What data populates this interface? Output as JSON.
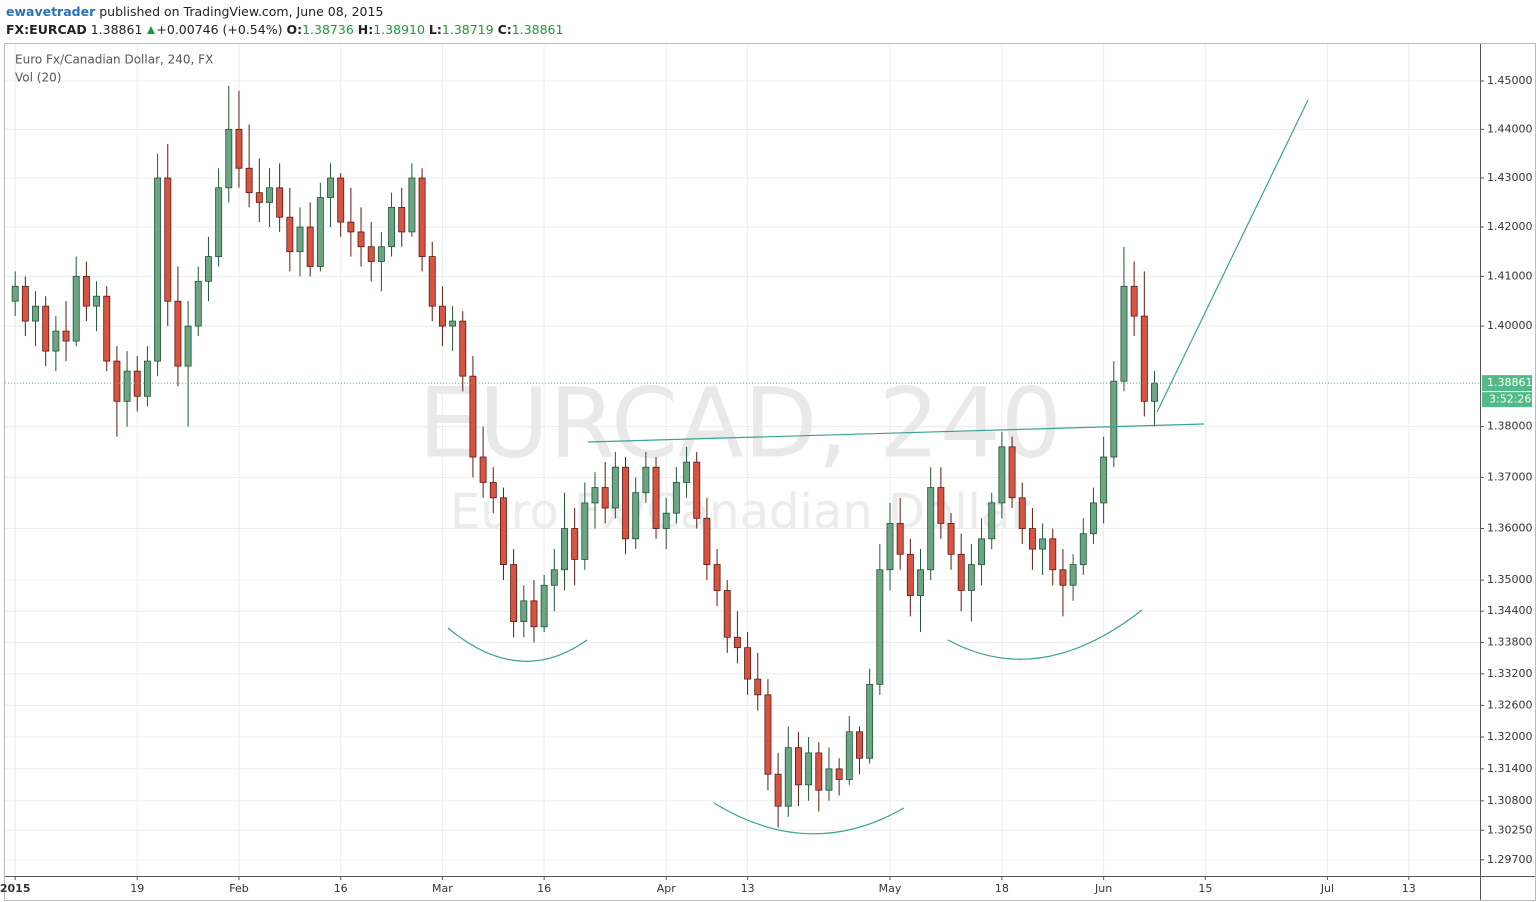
{
  "header": {
    "author": "ewavetrader",
    "published": "published on TradingView.com, June 08, 2015",
    "symbol": "FX:EURCAD",
    "price": "1.38861",
    "change": "+0.00746 (+0.54%)",
    "open_label": "O:",
    "open": "1.38736",
    "high_label": "H:",
    "high": "1.38910",
    "low_label": "L:",
    "low": "1.38719",
    "close_label": "C:",
    "close": "1.38861"
  },
  "chart_data": {
    "type": "candlestick",
    "title": "Euro Fx/Canadian Dollar, 240, FX",
    "subtitle": "Vol (20)",
    "watermark": [
      "EURCAD, 240",
      "Euro Fx/Canadian Dollar"
    ],
    "up_color": "#6ba583",
    "down_color": "#d75442",
    "log_scale": true,
    "grid": true,
    "last_price": 1.38861,
    "countdown": "3:52:26",
    "last_price_color": "#53b987",
    "xlim": [
      "2014-12-31",
      "2015-07-22"
    ],
    "xticks": [
      {
        "value": "2015-01-01",
        "label": "2015"
      },
      {
        "value": "2015-01-19",
        "label": "19"
      },
      {
        "value": "2015-02-02",
        "label": "Feb"
      },
      {
        "value": "2015-02-16",
        "label": "16"
      },
      {
        "value": "2015-03-02",
        "label": "Mar"
      },
      {
        "value": "2015-03-16",
        "label": "16"
      },
      {
        "value": "2015-04-01",
        "label": "Apr"
      },
      {
        "value": "2015-04-13",
        "label": "13"
      },
      {
        "value": "2015-05-01",
        "label": "May"
      },
      {
        "value": "2015-05-18",
        "label": "18"
      },
      {
        "value": "2015-06-01",
        "label": "Jun"
      },
      {
        "value": "2015-06-15",
        "label": "15"
      },
      {
        "value": "2015-07-01",
        "label": "Jul"
      },
      {
        "value": "2015-07-13",
        "label": "13"
      }
    ],
    "ylim": [
      1.294,
      1.4577
    ],
    "yticks": [
      {
        "value": 1.45,
        "label": "1.45000"
      },
      {
        "value": 1.44,
        "label": "1.44000"
      },
      {
        "value": 1.43,
        "label": "1.43000"
      },
      {
        "value": 1.42,
        "label": "1.42000"
      },
      {
        "value": 1.41,
        "label": "1.41000"
      },
      {
        "value": 1.4,
        "label": "1.40000"
      },
      {
        "value": 1.38,
        "label": "1.38000"
      },
      {
        "value": 1.37,
        "label": "1.37000"
      },
      {
        "value": 1.36,
        "label": "1.36000"
      },
      {
        "value": 1.35,
        "label": "1.35000"
      },
      {
        "value": 1.344,
        "label": "1.34400"
      },
      {
        "value": 1.338,
        "label": "1.33800"
      },
      {
        "value": 1.332,
        "label": "1.33200"
      },
      {
        "value": 1.326,
        "label": "1.32600"
      },
      {
        "value": 1.32,
        "label": "1.32000"
      },
      {
        "value": 1.314,
        "label": "1.31400"
      },
      {
        "value": 1.308,
        "label": "1.30800"
      },
      {
        "value": 1.3025,
        "label": "1.30250"
      },
      {
        "value": 1.297,
        "label": "1.29700"
      }
    ],
    "x": [
      "2015-01-01",
      "2015-01-02",
      "2015-01-05",
      "2015-01-06",
      "2015-01-07",
      "2015-01-08",
      "2015-01-09",
      "2015-01-12",
      "2015-01-13",
      "2015-01-14",
      "2015-01-15",
      "2015-01-16",
      "2015-01-19",
      "2015-01-20",
      "2015-01-21",
      "2015-01-22",
      "2015-01-23",
      "2015-01-26",
      "2015-01-27",
      "2015-01-28",
      "2015-01-29",
      "2015-01-30",
      "2015-02-02",
      "2015-02-03",
      "2015-02-04",
      "2015-02-05",
      "2015-02-06",
      "2015-02-09",
      "2015-02-10",
      "2015-02-11",
      "2015-02-12",
      "2015-02-13",
      "2015-02-16",
      "2015-02-17",
      "2015-02-18",
      "2015-02-19",
      "2015-02-20",
      "2015-02-23",
      "2015-02-24",
      "2015-02-25",
      "2015-02-26",
      "2015-02-27",
      "2015-03-02",
      "2015-03-03",
      "2015-03-04",
      "2015-03-05",
      "2015-03-06",
      "2015-03-09",
      "2015-03-10",
      "2015-03-11",
      "2015-03-12",
      "2015-03-13",
      "2015-03-16",
      "2015-03-17",
      "2015-03-18",
      "2015-03-19",
      "2015-03-20",
      "2015-03-23",
      "2015-03-24",
      "2015-03-25",
      "2015-03-26",
      "2015-03-27",
      "2015-03-30",
      "2015-03-31",
      "2015-04-01",
      "2015-04-02",
      "2015-04-03",
      "2015-04-06",
      "2015-04-07",
      "2015-04-08",
      "2015-04-09",
      "2015-04-10",
      "2015-04-13",
      "2015-04-14",
      "2015-04-15",
      "2015-04-16",
      "2015-04-17",
      "2015-04-20",
      "2015-04-21",
      "2015-04-22",
      "2015-04-23",
      "2015-04-24",
      "2015-04-27",
      "2015-04-28",
      "2015-04-29",
      "2015-04-30",
      "2015-05-01",
      "2015-05-04",
      "2015-05-05",
      "2015-05-06",
      "2015-05-07",
      "2015-05-08",
      "2015-05-11",
      "2015-05-12",
      "2015-05-13",
      "2015-05-14",
      "2015-05-15",
      "2015-05-18",
      "2015-05-19",
      "2015-05-20",
      "2015-05-21",
      "2015-05-22",
      "2015-05-25",
      "2015-05-26",
      "2015-05-27",
      "2015-05-28",
      "2015-05-29",
      "2015-06-01",
      "2015-06-02",
      "2015-06-03",
      "2015-06-04",
      "2015-06-05",
      "2015-06-08"
    ],
    "open": [
      1.405,
      1.408,
      1.401,
      1.404,
      1.395,
      1.399,
      1.397,
      1.41,
      1.404,
      1.406,
      1.393,
      1.385,
      1.391,
      1.386,
      1.393,
      1.43,
      1.405,
      1.392,
      1.4,
      1.409,
      1.414,
      1.428,
      1.44,
      1.432,
      1.427,
      1.425,
      1.428,
      1.422,
      1.415,
      1.42,
      1.412,
      1.426,
      1.43,
      1.421,
      1.419,
      1.416,
      1.413,
      1.416,
      1.424,
      1.419,
      1.43,
      1.414,
      1.404,
      1.4,
      1.401,
      1.39,
      1.374,
      1.369,
      1.366,
      1.353,
      1.342,
      1.346,
      1.341,
      1.349,
      1.352,
      1.36,
      1.354,
      1.365,
      1.368,
      1.364,
      1.372,
      1.358,
      1.367,
      1.372,
      1.36,
      1.363,
      1.369,
      1.373,
      1.362,
      1.353,
      1.348,
      1.339,
      1.337,
      1.331,
      1.328,
      1.313,
      1.307,
      1.318,
      1.311,
      1.317,
      1.31,
      1.314,
      1.312,
      1.321,
      1.316,
      1.33,
      1.352,
      1.361,
      1.355,
      1.347,
      1.352,
      1.368,
      1.361,
      1.355,
      1.348,
      1.353,
      1.358,
      1.365,
      1.376,
      1.366,
      1.36,
      1.356,
      1.358,
      1.352,
      1.349,
      1.353,
      1.359,
      1.365,
      1.374,
      1.389,
      1.408,
      1.402,
      1.385
    ],
    "high": [
      1.411,
      1.41,
      1.407,
      1.406,
      1.402,
      1.405,
      1.414,
      1.413,
      1.409,
      1.408,
      1.396,
      1.395,
      1.394,
      1.396,
      1.435,
      1.437,
      1.412,
      1.405,
      1.412,
      1.418,
      1.432,
      1.449,
      1.448,
      1.441,
      1.434,
      1.432,
      1.433,
      1.428,
      1.424,
      1.425,
      1.429,
      1.433,
      1.431,
      1.428,
      1.424,
      1.421,
      1.419,
      1.427,
      1.428,
      1.433,
      1.432,
      1.417,
      1.408,
      1.404,
      1.403,
      1.394,
      1.38,
      1.372,
      1.368,
      1.356,
      1.349,
      1.35,
      1.351,
      1.356,
      1.367,
      1.364,
      1.369,
      1.371,
      1.373,
      1.375,
      1.374,
      1.37,
      1.375,
      1.374,
      1.366,
      1.372,
      1.376,
      1.375,
      1.366,
      1.356,
      1.35,
      1.344,
      1.34,
      1.336,
      1.331,
      1.317,
      1.322,
      1.321,
      1.32,
      1.319,
      1.318,
      1.316,
      1.324,
      1.322,
      1.333,
      1.357,
      1.365,
      1.366,
      1.358,
      1.356,
      1.372,
      1.372,
      1.363,
      1.359,
      1.357,
      1.362,
      1.367,
      1.379,
      1.378,
      1.369,
      1.364,
      1.361,
      1.36,
      1.356,
      1.355,
      1.362,
      1.368,
      1.378,
      1.393,
      1.416,
      1.413,
      1.411,
      1.391
    ],
    "low": [
      1.402,
      1.398,
      1.396,
      1.392,
      1.391,
      1.393,
      1.396,
      1.401,
      1.399,
      1.391,
      1.378,
      1.38,
      1.383,
      1.384,
      1.39,
      1.4,
      1.388,
      1.38,
      1.398,
      1.405,
      1.412,
      1.425,
      1.428,
      1.424,
      1.421,
      1.42,
      1.419,
      1.411,
      1.41,
      1.41,
      1.411,
      1.42,
      1.418,
      1.414,
      1.412,
      1.409,
      1.407,
      1.414,
      1.416,
      1.418,
      1.411,
      1.401,
      1.396,
      1.395,
      1.387,
      1.37,
      1.366,
      1.363,
      1.35,
      1.339,
      1.339,
      1.338,
      1.34,
      1.344,
      1.348,
      1.349,
      1.352,
      1.36,
      1.361,
      1.362,
      1.355,
      1.356,
      1.365,
      1.358,
      1.356,
      1.361,
      1.366,
      1.36,
      1.35,
      1.345,
      1.336,
      1.334,
      1.328,
      1.325,
      1.31,
      1.303,
      1.305,
      1.307,
      1.308,
      1.306,
      1.308,
      1.309,
      1.311,
      1.313,
      1.315,
      1.328,
      1.348,
      1.352,
      1.343,
      1.34,
      1.35,
      1.358,
      1.352,
      1.344,
      1.342,
      1.349,
      1.356,
      1.362,
      1.364,
      1.357,
      1.352,
      1.351,
      1.349,
      1.343,
      1.346,
      1.351,
      1.357,
      1.361,
      1.372,
      1.387,
      1.398,
      1.382,
      1.38
    ],
    "close": [
      1.408,
      1.401,
      1.404,
      1.395,
      1.399,
      1.397,
      1.41,
      1.404,
      1.406,
      1.393,
      1.385,
      1.391,
      1.386,
      1.393,
      1.43,
      1.405,
      1.392,
      1.4,
      1.409,
      1.414,
      1.428,
      1.44,
      1.432,
      1.427,
      1.425,
      1.428,
      1.422,
      1.415,
      1.42,
      1.412,
      1.426,
      1.43,
      1.421,
      1.419,
      1.416,
      1.413,
      1.416,
      1.424,
      1.419,
      1.43,
      1.414,
      1.404,
      1.4,
      1.401,
      1.39,
      1.374,
      1.369,
      1.366,
      1.353,
      1.342,
      1.346,
      1.341,
      1.349,
      1.352,
      1.36,
      1.354,
      1.365,
      1.368,
      1.364,
      1.372,
      1.358,
      1.367,
      1.372,
      1.36,
      1.363,
      1.369,
      1.373,
      1.362,
      1.353,
      1.348,
      1.339,
      1.337,
      1.331,
      1.328,
      1.313,
      1.307,
      1.318,
      1.311,
      1.317,
      1.31,
      1.314,
      1.312,
      1.321,
      1.316,
      1.33,
      1.352,
      1.361,
      1.355,
      1.347,
      1.352,
      1.368,
      1.361,
      1.355,
      1.348,
      1.353,
      1.358,
      1.365,
      1.376,
      1.366,
      1.36,
      1.356,
      1.358,
      1.352,
      1.349,
      1.353,
      1.359,
      1.365,
      1.374,
      1.389,
      1.408,
      1.402,
      1.385,
      1.38861
    ]
  }
}
